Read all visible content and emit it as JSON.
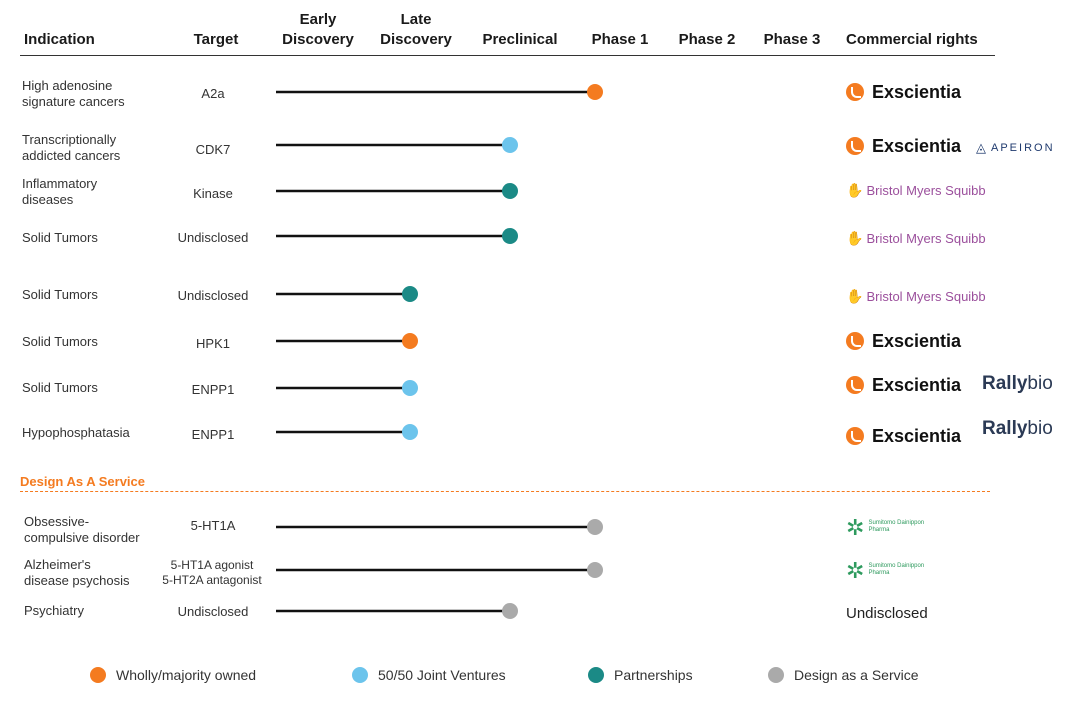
{
  "headers": {
    "indication": "Indication",
    "target": "Target",
    "early_discovery": [
      "Early",
      "Discovery"
    ],
    "late_discovery": [
      "Late",
      "Discovery"
    ],
    "preclinical": "Preclinical",
    "phase1": "Phase 1",
    "phase2": "Phase 2",
    "phase3": "Phase 3",
    "commercial_rights": "Commercial rights"
  },
  "section_label": "Design As A Service",
  "legend": [
    {
      "label": "Wholly/majority owned",
      "color": "#f47b20"
    },
    {
      "label": "50/50 Joint Ventures",
      "color": "#6cc4ec"
    },
    {
      "label": "Partnerships",
      "color": "#1b8a86"
    },
    {
      "label": "Design as a Service",
      "color": "#aaaaaa"
    }
  ],
  "logos": {
    "exscientia": "Exscientia",
    "apeiron": "APEIRON",
    "bms": "Bristol Myers Squibb",
    "rallybio_a": "Rally",
    "rallybio_b": "bio",
    "sdp_a": "Sumitomo Dainippon",
    "sdp_b": "Pharma"
  },
  "chart_data": {
    "type": "table",
    "stages": [
      "Early Discovery",
      "Late Discovery",
      "Preclinical",
      "Phase 1",
      "Phase 2",
      "Phase 3"
    ],
    "rows": [
      {
        "indication": "High adenosine\nsignature cancers",
        "target": "A2a",
        "stage": "Phase 1",
        "progress": 3.3,
        "category": "Wholly/majority owned",
        "rights": [
          "Exscientia"
        ]
      },
      {
        "indication": "Transcriptionally\naddicted cancers",
        "target": "CDK7",
        "stage": "Preclinical",
        "progress": 2.45,
        "category": "50/50 Joint Ventures",
        "rights": [
          "Exscientia",
          "APEIRON"
        ]
      },
      {
        "indication": "Inflammatory\ndiseases",
        "target": "Kinase",
        "stage": "Preclinical",
        "progress": 2.45,
        "category": "Partnerships",
        "rights": [
          "Bristol Myers Squibb"
        ]
      },
      {
        "indication": "Solid Tumors",
        "target": "Undisclosed",
        "stage": "Preclinical",
        "progress": 2.45,
        "category": "Partnerships",
        "rights": [
          "Bristol Myers Squibb"
        ]
      },
      {
        "indication": "Solid Tumors",
        "target": "Undisclosed",
        "stage": "Late Discovery",
        "progress": 1.45,
        "category": "Partnerships",
        "rights": [
          "Bristol Myers Squibb"
        ]
      },
      {
        "indication": "Solid Tumors",
        "target": "HPK1",
        "stage": "Late Discovery",
        "progress": 1.45,
        "category": "Wholly/majority owned",
        "rights": [
          "Exscientia"
        ]
      },
      {
        "indication": "Solid Tumors",
        "target": "ENPP1",
        "stage": "Late Discovery",
        "progress": 1.45,
        "category": "50/50 Joint Ventures",
        "rights": [
          "Exscientia",
          "Rallybio"
        ]
      },
      {
        "indication": "Hypophosphatasia",
        "target": "ENPP1",
        "stage": "Late Discovery",
        "progress": 1.45,
        "category": "50/50 Joint Ventures",
        "rights": [
          "Exscientia",
          "Rallybio"
        ]
      },
      {
        "indication": "Obsessive-\ncompulsive disorder",
        "target": "5-HT1A",
        "stage": "Phase 1",
        "progress": 3.3,
        "category": "Design as a Service",
        "rights": [
          "Sumitomo Dainippon Pharma"
        ]
      },
      {
        "indication": "Alzheimer's\ndisease psychosis",
        "target": "5-HT1A agonist\n5-HT2A antagonist",
        "stage": "Phase 1",
        "progress": 3.3,
        "category": "Design as a Service",
        "rights": [
          "Sumitomo Dainippon Pharma"
        ]
      },
      {
        "indication": "Psychiatry",
        "target": "Undisclosed",
        "stage": "Preclinical",
        "progress": 2.45,
        "category": "Design as a Service",
        "rights": [
          "Undisclosed"
        ]
      }
    ]
  }
}
